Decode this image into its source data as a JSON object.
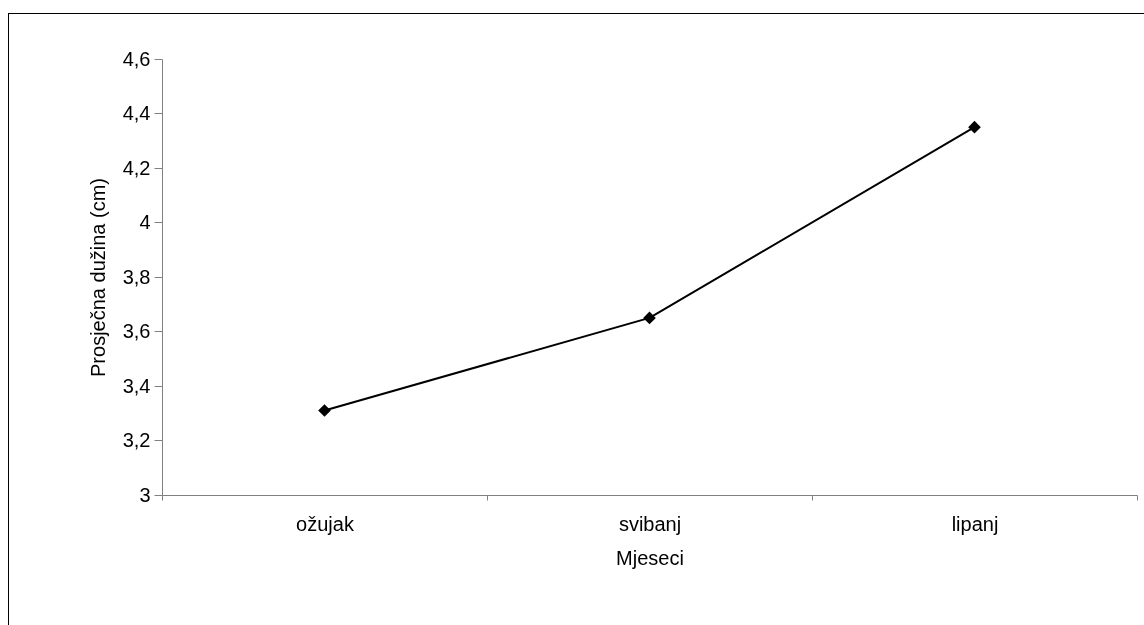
{
  "chart_data": {
    "type": "line",
    "xlabel": "Mjeseci",
    "ylabel": "Prosječna dužina (cm)",
    "categories": [
      "ožujak",
      "svibanj",
      "lipanj"
    ],
    "series": [
      {
        "color": "#000000",
        "values": [
          3.31,
          3.65,
          4.35
        ]
      }
    ],
    "ylim": [
      3,
      4.6
    ],
    "yticks": [
      3,
      {
        "value": 3.2,
        "label": "3,2"
      },
      {
        "value": 3.4,
        "label": "3,4"
      },
      {
        "value": 3.6,
        "label": "3,6"
      },
      {
        "value": 3.8,
        "label": "3,8"
      },
      4,
      {
        "value": 4.2,
        "label": "4,2"
      },
      {
        "value": 4.4,
        "label": "4,4"
      },
      {
        "value": 4.6,
        "label": "4,6"
      }
    ],
    "grid": false,
    "marker": "diamond",
    "line_style": "solid"
  }
}
